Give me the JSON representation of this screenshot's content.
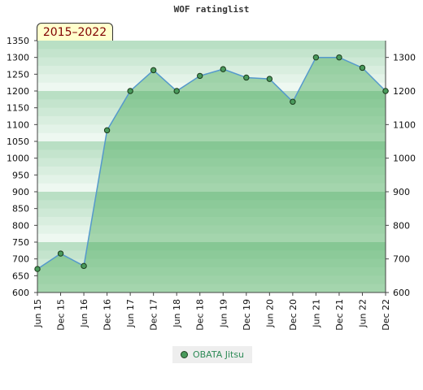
{
  "chart_data": {
    "type": "area",
    "title": "WOF ratinglist",
    "badge": "2015–2022",
    "x": [
      "Jun 15",
      "Dec 15",
      "Jun 16",
      "Dec 16",
      "Jun 17",
      "Dec 17",
      "Jun 18",
      "Dec 18",
      "Jun 19",
      "Dec 19",
      "Jun 20",
      "Dec 20",
      "Jun 21",
      "Dec 21",
      "Jun 22",
      "Dec 22"
    ],
    "series": [
      {
        "name": "OBATA Jitsu",
        "values": [
          670,
          716,
          679,
          1083,
          1200,
          1262,
          1200,
          1245,
          1265,
          1240,
          1236,
          1168,
          1300,
          1300,
          1269,
          1200
        ]
      }
    ],
    "ylim": [
      600,
      1350
    ],
    "left_ticks": [
      600,
      650,
      700,
      750,
      800,
      850,
      900,
      950,
      1000,
      1050,
      1100,
      1150,
      1200,
      1250,
      1300,
      1350
    ],
    "right_ticks": [
      600,
      700,
      800,
      900,
      1000,
      1100,
      1200,
      1300
    ],
    "legend": "bottom-center",
    "colors": {
      "line": "#5599cc",
      "fill": "#4aaa5c",
      "marker": "#4a9a5c",
      "band_dark": "#b9dfc4",
      "band_light": "#eaf6ee"
    }
  }
}
